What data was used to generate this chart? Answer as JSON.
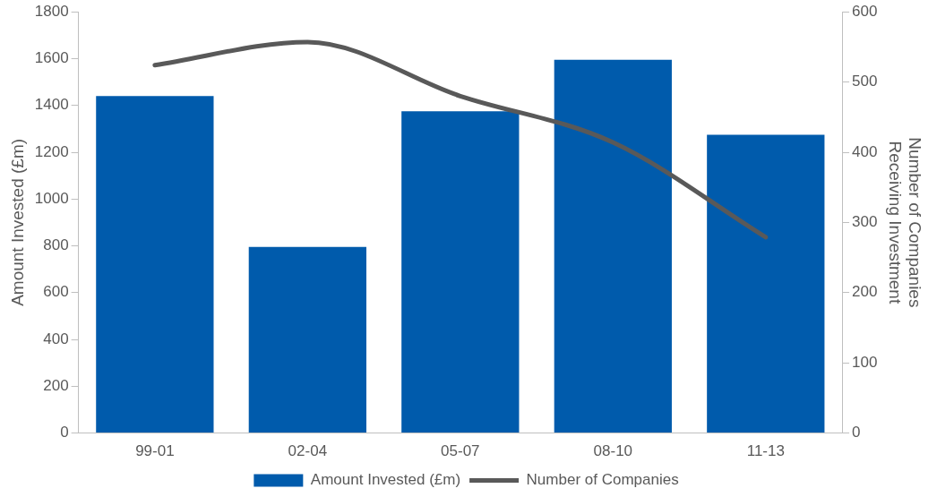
{
  "chart_data": {
    "type": "bar",
    "categories": [
      "99-01",
      "02-04",
      "05-07",
      "08-10",
      "11-13"
    ],
    "series": [
      {
        "name": "Amount Invested (£m)",
        "color": "#005bac",
        "values": [
          1440,
          795,
          1375,
          1595,
          1275
        ]
      },
      {
        "type": "line",
        "name": "Number of Companies",
        "color": "#595959",
        "values": [
          524,
          557,
          480,
          414,
          279
        ],
        "axis": "y2"
      }
    ],
    "ylabel": "Amount Invested (£m)",
    "y2label": "Number of Companies Receiving Investment",
    "ylim": [
      0,
      1800
    ],
    "yticks": [
      0,
      200,
      400,
      600,
      800,
      1000,
      1200,
      1400,
      1600,
      1800
    ],
    "y2lim": [
      0,
      600
    ],
    "y2ticks": [
      0,
      100,
      200,
      300,
      400,
      500,
      600
    ],
    "legend": "bottom"
  }
}
